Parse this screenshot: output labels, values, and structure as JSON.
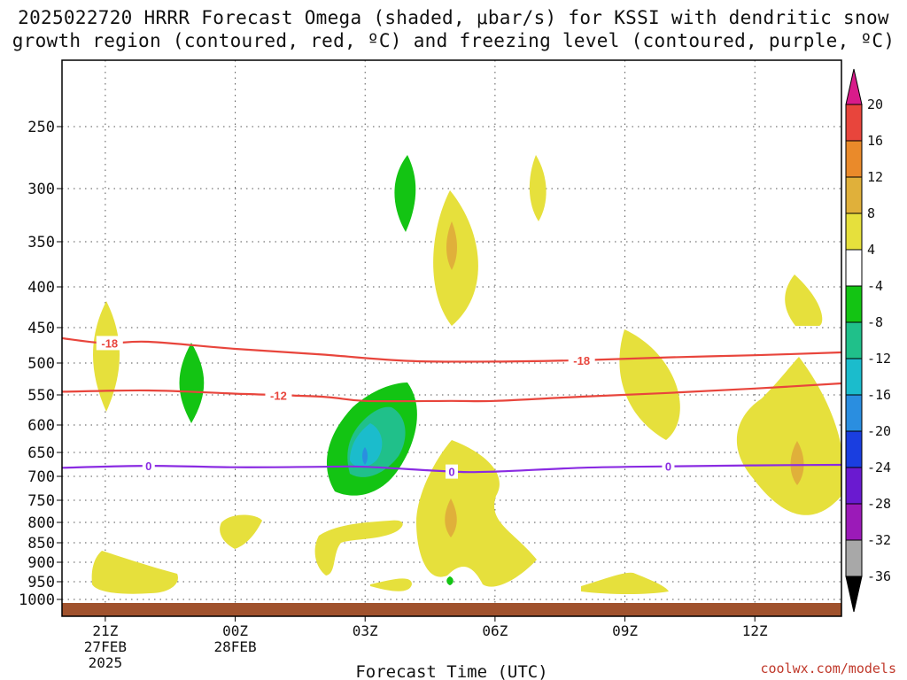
{
  "title_line1": "2025022720 HRRR Forecast Omega (shaded, μbar/s) for KSSI with dendritic snow",
  "title_line2": "growth region (contoured, red, ºC) and freezing level (contoured, purple, ºC)",
  "x_axis_title": "Forecast Time (UTC)",
  "credit": "coolwx.com/models",
  "chart_data": {
    "type": "time-height contour",
    "y_ticks": [
      250,
      300,
      350,
      400,
      450,
      500,
      550,
      600,
      650,
      700,
      750,
      800,
      850,
      900,
      950,
      1000
    ],
    "y_unit": "hPa",
    "y_range": [
      200,
      1020
    ],
    "x_ticks": [
      {
        "hour": 21,
        "label": "21Z",
        "line2": "27FEB",
        "line3": "2025"
      },
      {
        "hour": 24,
        "label": "00Z",
        "line2": "28FEB",
        "line3": ""
      },
      {
        "hour": 27,
        "label": "03Z",
        "line2": "",
        "line3": ""
      },
      {
        "hour": 30,
        "label": "06Z",
        "line2": "",
        "line3": ""
      },
      {
        "hour": 33,
        "label": "09Z",
        "line2": "",
        "line3": ""
      },
      {
        "hour": 36,
        "label": "12Z",
        "line2": "",
        "line3": ""
      }
    ],
    "x_range_hours": [
      20,
      38
    ],
    "dgz_contours": [
      {
        "label": "-18",
        "color": "#e8453c",
        "points": [
          [
            20,
            465
          ],
          [
            21,
            472
          ],
          [
            22,
            470
          ],
          [
            24,
            480
          ],
          [
            26,
            488
          ],
          [
            28,
            497
          ],
          [
            30,
            498
          ],
          [
            32,
            496
          ],
          [
            34,
            492
          ],
          [
            36,
            489
          ],
          [
            38,
            485
          ]
        ]
      },
      {
        "label": "-12",
        "color": "#e8453c",
        "points": [
          [
            20,
            545
          ],
          [
            22,
            543
          ],
          [
            24,
            548
          ],
          [
            26,
            553
          ],
          [
            27,
            560
          ],
          [
            29,
            560
          ],
          [
            30,
            560
          ],
          [
            32,
            553
          ],
          [
            34,
            547
          ],
          [
            36,
            540
          ],
          [
            38,
            532
          ]
        ]
      }
    ],
    "freezing_level": {
      "label": "0",
      "color": "#8a2be2",
      "points": [
        [
          20,
          682
        ],
        [
          22,
          678
        ],
        [
          24,
          681
        ],
        [
          26,
          680
        ],
        [
          27,
          680
        ],
        [
          29,
          690
        ],
        [
          30,
          690
        ],
        [
          32,
          682
        ],
        [
          34,
          679
        ],
        [
          36,
          677
        ],
        [
          38,
          676
        ]
      ]
    },
    "omega_colorbar": {
      "levels": [
        "20",
        "16",
        "12",
        "8",
        "4",
        "-4",
        "-8",
        "-12",
        "-16",
        "-20",
        "-24",
        "-28",
        "-32",
        "-36"
      ],
      "colors": [
        "#d81b8a",
        "#e8453c",
        "#ea8a2a",
        "#e0b03a",
        "#e6e03c",
        "#ffffff",
        "#13c413",
        "#20c08a",
        "#1bbccc",
        "#2a8ee0",
        "#1a3ee0",
        "#6a1ad0",
        "#9b1ab8",
        "#a8a8a8",
        "#000000"
      ]
    },
    "grid": true
  }
}
